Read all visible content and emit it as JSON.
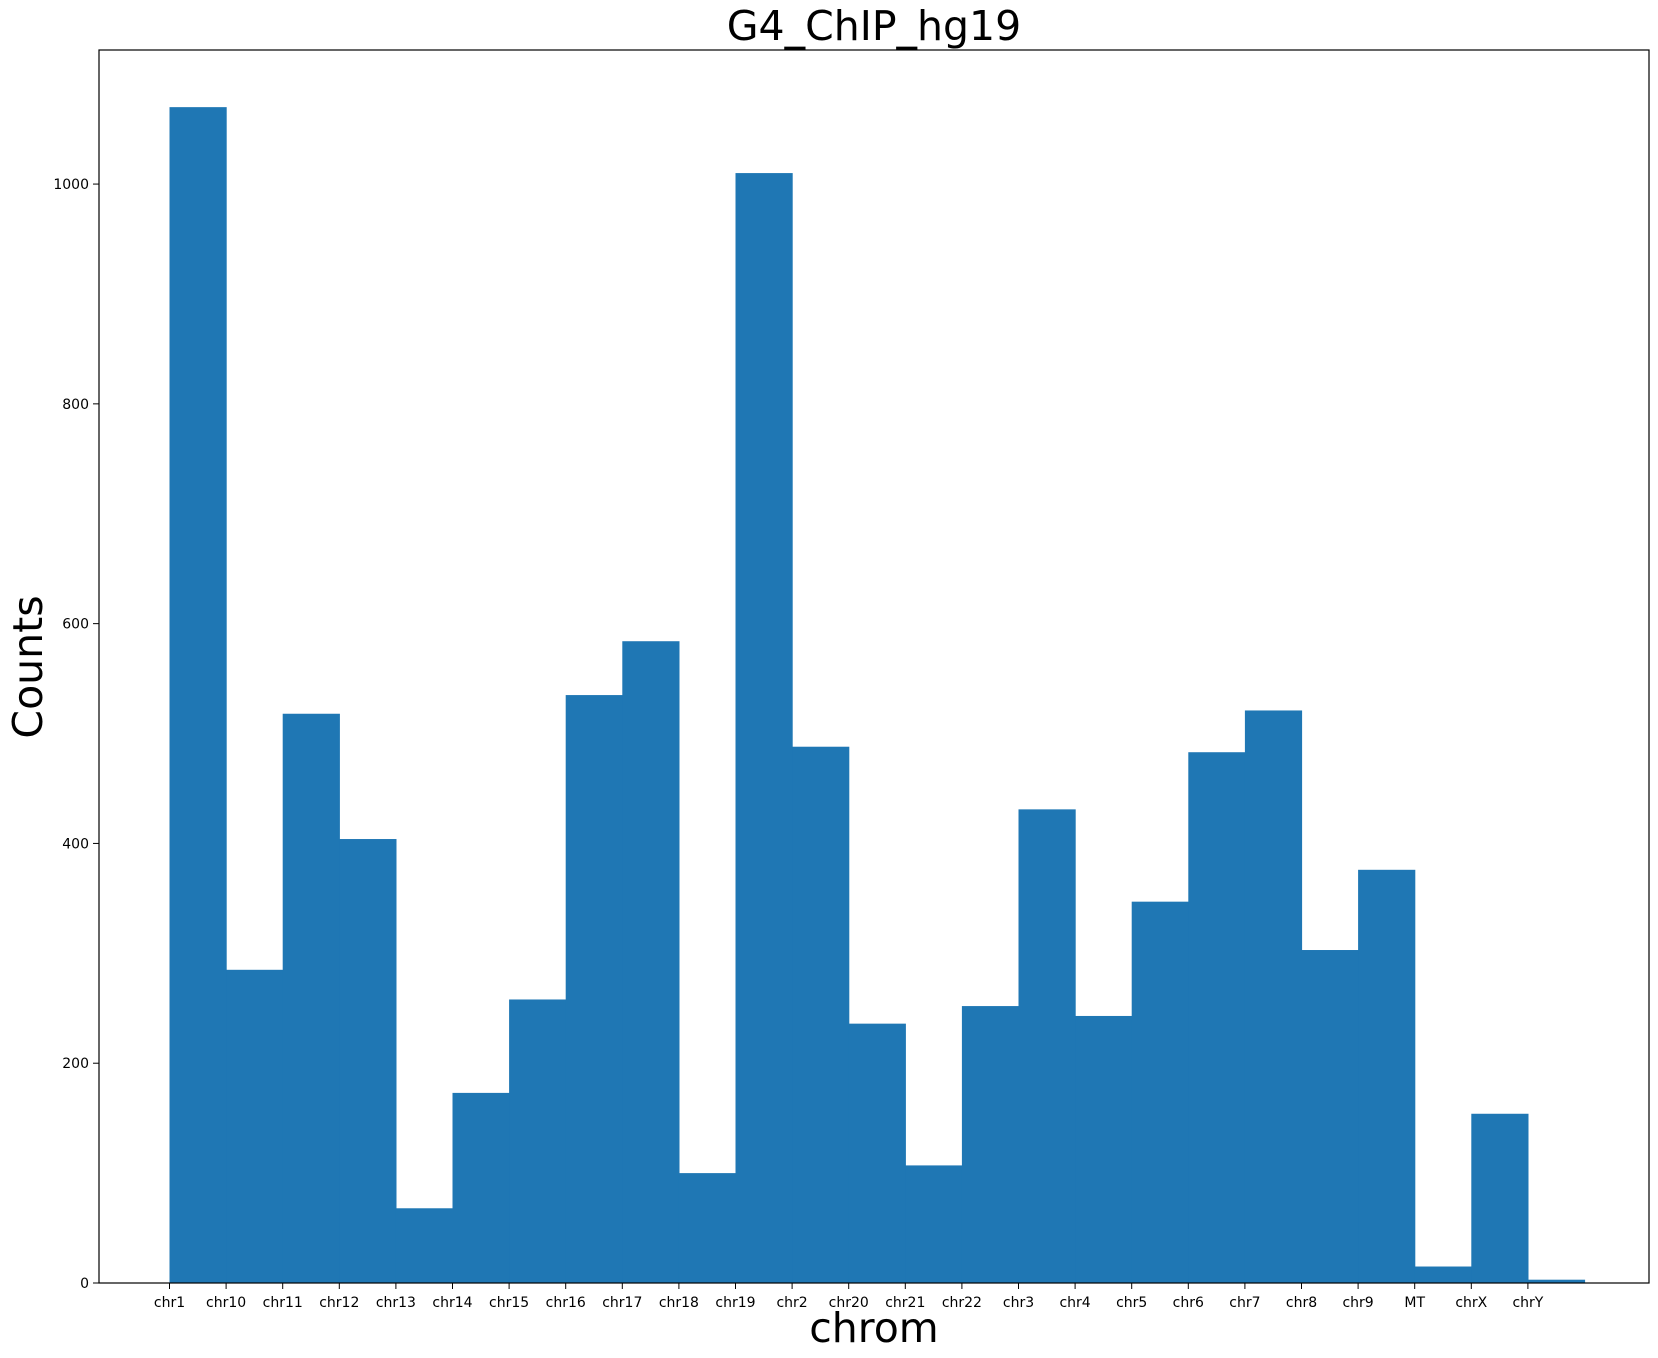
{
  "chart_data": {
    "type": "bar",
    "title": "G4_ChIP_hg19",
    "xlabel": "chrom",
    "ylabel": "Counts",
    "categories": [
      "chr1",
      "chr10",
      "chr11",
      "chr12",
      "chr13",
      "chr14",
      "chr15",
      "chr16",
      "chr17",
      "chr18",
      "chr19",
      "chr2",
      "chr20",
      "chr21",
      "chr22",
      "chr3",
      "chr4",
      "chr5",
      "chr6",
      "chr7",
      "chr8",
      "chr9",
      "MT",
      "chrX",
      "chrY"
    ],
    "values": [
      1070,
      285,
      518,
      404,
      68,
      173,
      258,
      535,
      584,
      100,
      1010,
      488,
      236,
      107,
      252,
      431,
      243,
      347,
      483,
      521,
      303,
      376,
      15,
      154,
      3
    ],
    "ylim": [
      0,
      1122
    ],
    "yticks": [
      0,
      200,
      400,
      600,
      800,
      1000
    ],
    "grid": false,
    "color": "#1f77b4"
  }
}
